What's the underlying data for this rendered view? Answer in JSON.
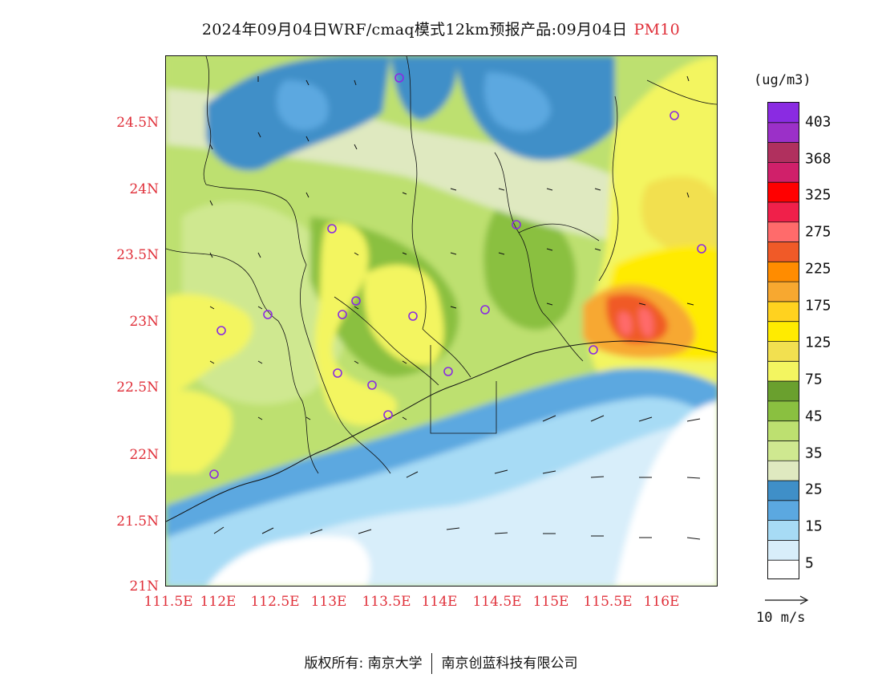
{
  "header": {
    "title": "2024年09月04日WRF/cmaq模式12km预报产品:09月04日",
    "pollutant": "PM10",
    "pollutant_color": "#e0303a"
  },
  "map": {
    "lat_labels": [
      "24.5N",
      "24N",
      "23.5N",
      "23N",
      "22.5N",
      "22N",
      "21.5N",
      "21N"
    ],
    "lon_labels": [
      "111.5E",
      "112E",
      "112.5E",
      "113E",
      "113.5E",
      "114E",
      "114.5E",
      "115E",
      "115.5E",
      "116E"
    ],
    "lat_range": [
      21.0,
      25.0
    ],
    "lon_range": [
      111.5,
      115.7
    ],
    "label_color": "#e0303a",
    "background_note": "PM10 concentration shading with wind vectors and station circles",
    "station_count": 17,
    "station_color": "#8a2be2"
  },
  "legend": {
    "unit": "(ug/m3)",
    "labels": [
      "403",
      "368",
      "325",
      "275",
      "225",
      "175",
      "125",
      "75",
      "45",
      "35",
      "25",
      "15",
      "5"
    ],
    "colors": [
      "#8a2be2",
      "#9b30c8",
      "#b0305e",
      "#d0206a",
      "#ff0000",
      "#f0204a",
      "#ff6b6b",
      "#f05a28",
      "#ff8c00",
      "#f7a830",
      "#ffd21f",
      "#ffeb00",
      "#f2e050",
      "#f3f560",
      "#6aa02e",
      "#8ac040",
      "#bde070",
      "#cfe890",
      "#dfe9c0",
      "#3f8fc8",
      "#5ba8e0",
      "#a7dbf5",
      "#d8eefa",
      "#ffffff"
    ]
  },
  "wind_reference": {
    "label": "10 m/s"
  },
  "footer": {
    "copyright_left": "版权所有: 南京大学",
    "copyright_right": "南京创蓝科技有限公司"
  }
}
